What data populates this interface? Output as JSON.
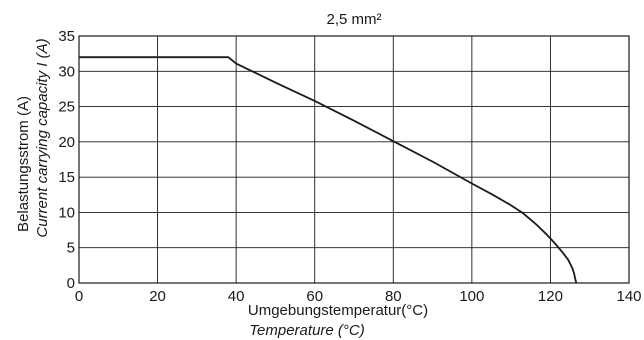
{
  "chart_data": {
    "type": "line",
    "title": "2,5 mm²",
    "xlabel": "Umgebungstemperatur(°C)",
    "xlabel_secondary": "Temperature (°C)",
    "ylabel": "Belastungsstrom (A)",
    "ylabel_secondary": "Current carrying capacity I (A)",
    "xlim": [
      0,
      140
    ],
    "ylim": [
      0,
      35
    ],
    "x_ticks": [
      "0",
      "20",
      "40",
      "60",
      "80",
      "100",
      "120",
      "140"
    ],
    "y_ticks": [
      "0",
      "5",
      "10",
      "15",
      "20",
      "25",
      "30",
      "35"
    ],
    "grid": true,
    "series": [
      {
        "x": [
          0,
          38,
          40,
          50,
          60,
          70,
          80,
          90,
          100,
          105,
          110,
          113,
          116,
          119,
          121,
          123,
          124.5,
          125.5,
          126,
          126.3,
          126.6
        ],
        "y": [
          32,
          32,
          31.1,
          28.4,
          25.8,
          23.0,
          20.1,
          17.2,
          14.1,
          12.6,
          11.0,
          9.9,
          8.5,
          6.9,
          5.7,
          4.4,
          3.3,
          2.2,
          1.4,
          0.6,
          0
        ]
      }
    ]
  }
}
